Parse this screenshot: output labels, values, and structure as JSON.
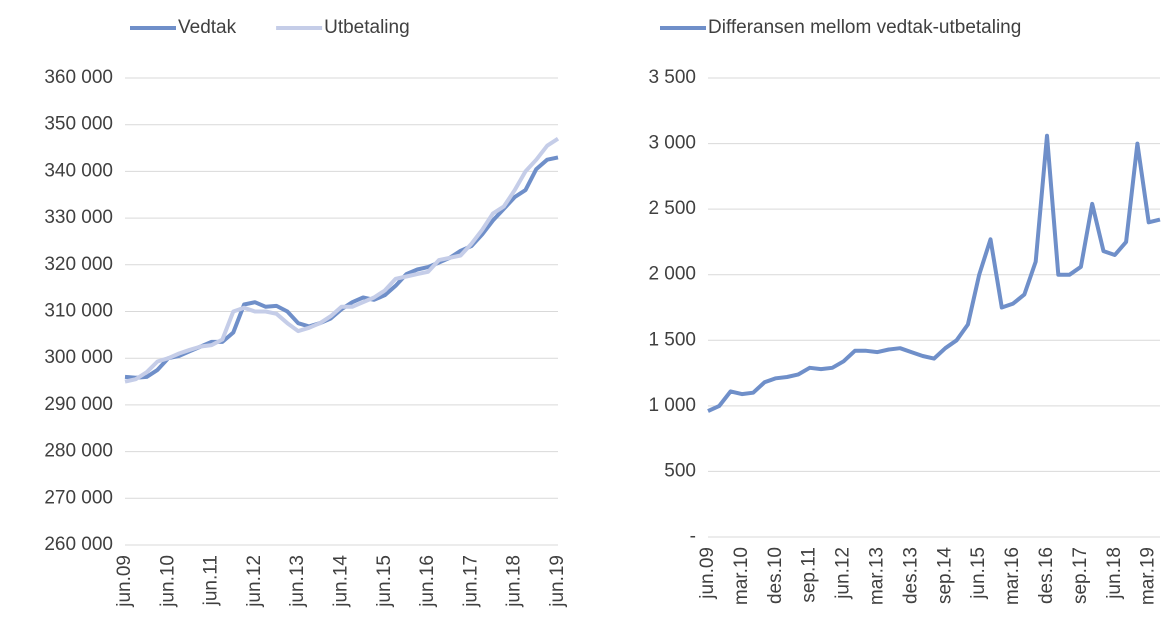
{
  "chart_data": [
    {
      "type": "line",
      "categories": [
        "jun.09",
        null,
        null,
        null,
        "jun.10",
        null,
        null,
        null,
        "jun.11",
        null,
        null,
        null,
        "jun.12",
        null,
        null,
        null,
        "jun.13",
        null,
        null,
        null,
        "jun.14",
        null,
        null,
        null,
        "jun.15",
        null,
        null,
        null,
        "jun.16",
        null,
        null,
        null,
        "jun.17",
        null,
        null,
        null,
        "jun.18",
        null,
        null,
        null,
        "jun.19"
      ],
      "series": [
        {
          "name": "Vedtak",
          "color": "#6f8fc9",
          "values": [
            296000,
            295800,
            296000,
            297500,
            300000,
            300500,
            301500,
            302500,
            303500,
            303500,
            305500,
            311500,
            312000,
            311000,
            311200,
            310000,
            307500,
            306800,
            307500,
            308500,
            310500,
            312000,
            313000,
            312500,
            313500,
            315500,
            318000,
            319000,
            319500,
            320500,
            321500,
            323000,
            324000,
            326500,
            329500,
            332000,
            334500,
            336000,
            340500,
            342500,
            343000
          ]
        },
        {
          "name": "Utbetaling",
          "color": "#c5cde8",
          "values": [
            295000,
            295500,
            297000,
            299300,
            300000,
            301000,
            301800,
            302500,
            302800,
            304000,
            310000,
            310800,
            310000,
            310000,
            309500,
            307500,
            305800,
            306500,
            307500,
            309000,
            311000,
            311000,
            312000,
            313000,
            314500,
            317000,
            317500,
            318000,
            318500,
            321000,
            321500,
            322000,
            324500,
            327500,
            331000,
            332500,
            336000,
            340000,
            342500,
            345500,
            347000
          ]
        }
      ],
      "ylim": [
        260000,
        360000
      ],
      "yticks": [
        {
          "value": 260000,
          "label": "260 000"
        },
        {
          "value": 270000,
          "label": "270 000"
        },
        {
          "value": 280000,
          "label": "280 000"
        },
        {
          "value": 290000,
          "label": "290 000"
        },
        {
          "value": 300000,
          "label": "300 000"
        },
        {
          "value": 310000,
          "label": "310 000"
        },
        {
          "value": 320000,
          "label": "320 000"
        },
        {
          "value": 330000,
          "label": "330 000"
        },
        {
          "value": 340000,
          "label": "340 000"
        },
        {
          "value": 350000,
          "label": "350 000"
        },
        {
          "value": 360000,
          "label": "360 000"
        }
      ],
      "grid": true
    },
    {
      "type": "line",
      "categories": [
        "jun.09",
        null,
        null,
        "mar.10",
        null,
        null,
        "des.10",
        null,
        null,
        "sep.11",
        null,
        null,
        "jun.12",
        null,
        null,
        "mar.13",
        null,
        null,
        "des.13",
        null,
        null,
        "sep.14",
        null,
        null,
        "jun.15",
        null,
        null,
        "mar.16",
        null,
        null,
        "des.16",
        null,
        null,
        "sep.17",
        null,
        null,
        "jun.18",
        null,
        null,
        "mar.19",
        null
      ],
      "series": [
        {
          "name": "Differansen mellom vedtak-utbetaling",
          "color": "#6f8fc9",
          "values": [
            960,
            1000,
            1110,
            1090,
            1100,
            1180,
            1210,
            1220,
            1240,
            1290,
            1280,
            1290,
            1340,
            1420,
            1420,
            1410,
            1430,
            1440,
            1410,
            1380,
            1360,
            1440,
            1500,
            1620,
            2000,
            2270,
            1750,
            1780,
            1850,
            2100,
            3060,
            2000,
            2000,
            2060,
            2540,
            2180,
            2150,
            2250,
            3000,
            2400,
            2420
          ]
        }
      ],
      "ylim": [
        0,
        3500
      ],
      "yticks": [
        {
          "value": 0,
          "label": "-"
        },
        500,
        {
          "value": 1000,
          "label": "1 000"
        },
        {
          "value": 1500,
          "label": "1 500"
        },
        {
          "value": 2000,
          "label": "2 000"
        },
        {
          "value": 2500,
          "label": "2 500"
        },
        {
          "value": 3000,
          "label": "3 000"
        },
        {
          "value": 3500,
          "label": "3 500"
        }
      ],
      "grid": true
    }
  ]
}
